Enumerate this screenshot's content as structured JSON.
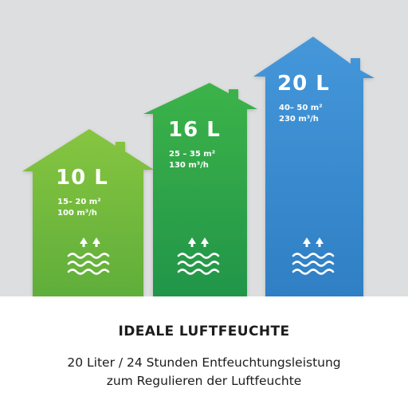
{
  "houses": [
    {
      "capacity": "10 L",
      "area": "15– 20 m²",
      "airflow": "100 m³/h",
      "color": "#7bbd3e"
    },
    {
      "capacity": "16 L",
      "area": "25 – 35 m²",
      "airflow": "130 m³/h",
      "color": "#34a94a"
    },
    {
      "capacity": "20 L",
      "area": "40– 50 m²",
      "airflow": "230 m³/h",
      "color": "#3f8fd4"
    }
  ],
  "icons": [
    "humidity-up-arrows-icon",
    "water-waves-icon"
  ],
  "caption": {
    "heading": "IDEALE LUFTFEUCHTE",
    "line1": "20 Liter / 24 Stunden Entfeuchtungsleistung",
    "line2": "zum Regulieren der Luftfeuchte"
  }
}
